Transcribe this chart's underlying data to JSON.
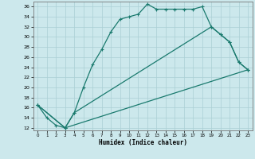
{
  "xlabel": "Humidex (Indice chaleur)",
  "bg_color": "#cce8ec",
  "line_color": "#1a7a6e",
  "grid_color": "#aacfd4",
  "xlim": [
    -0.5,
    23.5
  ],
  "ylim": [
    11.5,
    37.0
  ],
  "xticks": [
    0,
    1,
    2,
    3,
    4,
    5,
    6,
    7,
    8,
    9,
    10,
    11,
    12,
    13,
    14,
    15,
    16,
    17,
    18,
    19,
    20,
    21,
    22,
    23
  ],
  "yticks": [
    12,
    14,
    16,
    18,
    20,
    22,
    24,
    26,
    28,
    30,
    32,
    34,
    36
  ],
  "line1_x": [
    0,
    1,
    2,
    3,
    4,
    5,
    6,
    7,
    8,
    9,
    10,
    11,
    12,
    13,
    14,
    15,
    16,
    17,
    18,
    19,
    20,
    21,
    22,
    23
  ],
  "line1_y": [
    16.5,
    14.0,
    12.5,
    12.0,
    15.0,
    20.0,
    24.5,
    27.5,
    31.0,
    33.5,
    34.0,
    34.5,
    36.5,
    35.5,
    35.5,
    35.5,
    35.5,
    35.5,
    36.0,
    32.0,
    30.5,
    29.0,
    25.0,
    23.5
  ],
  "line2_x": [
    0,
    3,
    4,
    19,
    20,
    21,
    22,
    23
  ],
  "line2_y": [
    16.5,
    12.0,
    15.0,
    32.0,
    30.5,
    29.0,
    25.0,
    23.5
  ],
  "line3_x": [
    0,
    3,
    23
  ],
  "line3_y": [
    16.5,
    12.0,
    23.5
  ],
  "markersize": 3,
  "linewidth": 0.9
}
